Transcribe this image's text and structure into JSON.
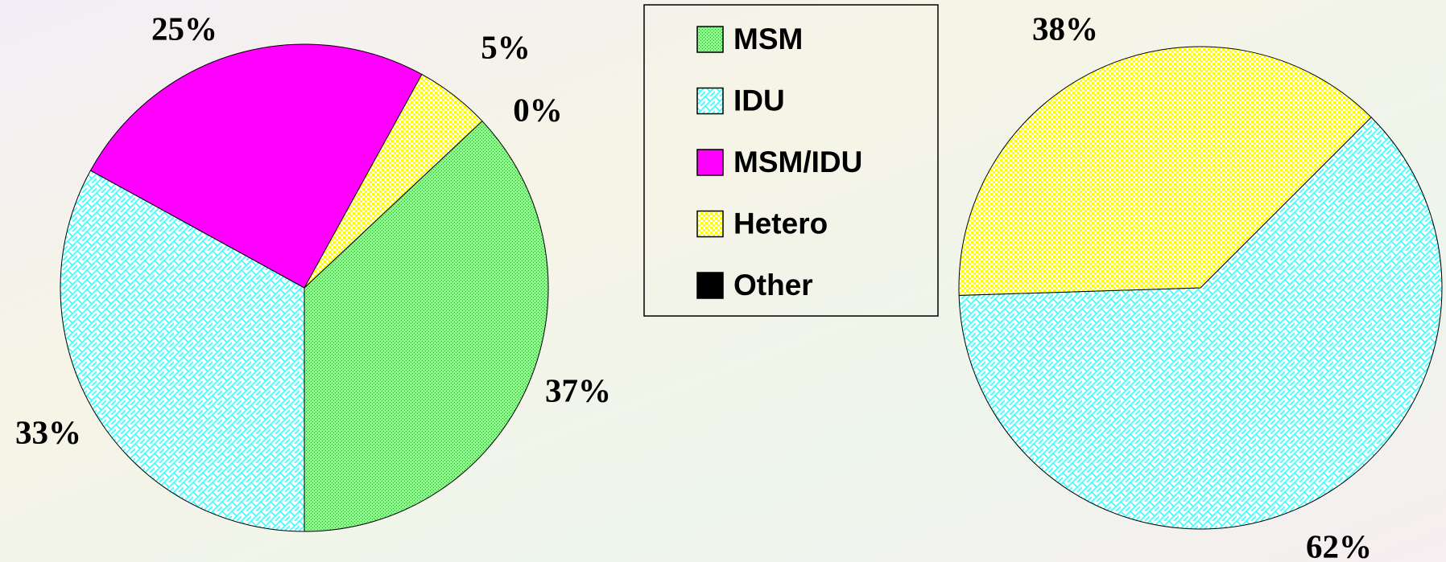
{
  "chart_data": [
    {
      "type": "pie",
      "categories": [
        "MSM",
        "IDU",
        "MSM/IDU",
        "Hetero",
        "Other"
      ],
      "values": [
        37,
        33,
        25,
        5,
        0
      ],
      "value_labels": [
        "37%",
        "33%",
        "25%",
        "5%",
        "0%"
      ],
      "colors": [
        "#80ff80",
        "#33ffff",
        "#ff00ff",
        "#ffff00",
        "#000000"
      ],
      "patterns": [
        "dots",
        "brick",
        "solid",
        "checker",
        "solid"
      ],
      "legend": true
    },
    {
      "type": "pie",
      "categories": [
        "IDU",
        "Hetero"
      ],
      "values": [
        62,
        38
      ],
      "value_labels": [
        "62%",
        "38%"
      ],
      "colors": [
        "#33ffff",
        "#ffff00"
      ],
      "patterns": [
        "brick",
        "checker"
      ]
    }
  ]
}
